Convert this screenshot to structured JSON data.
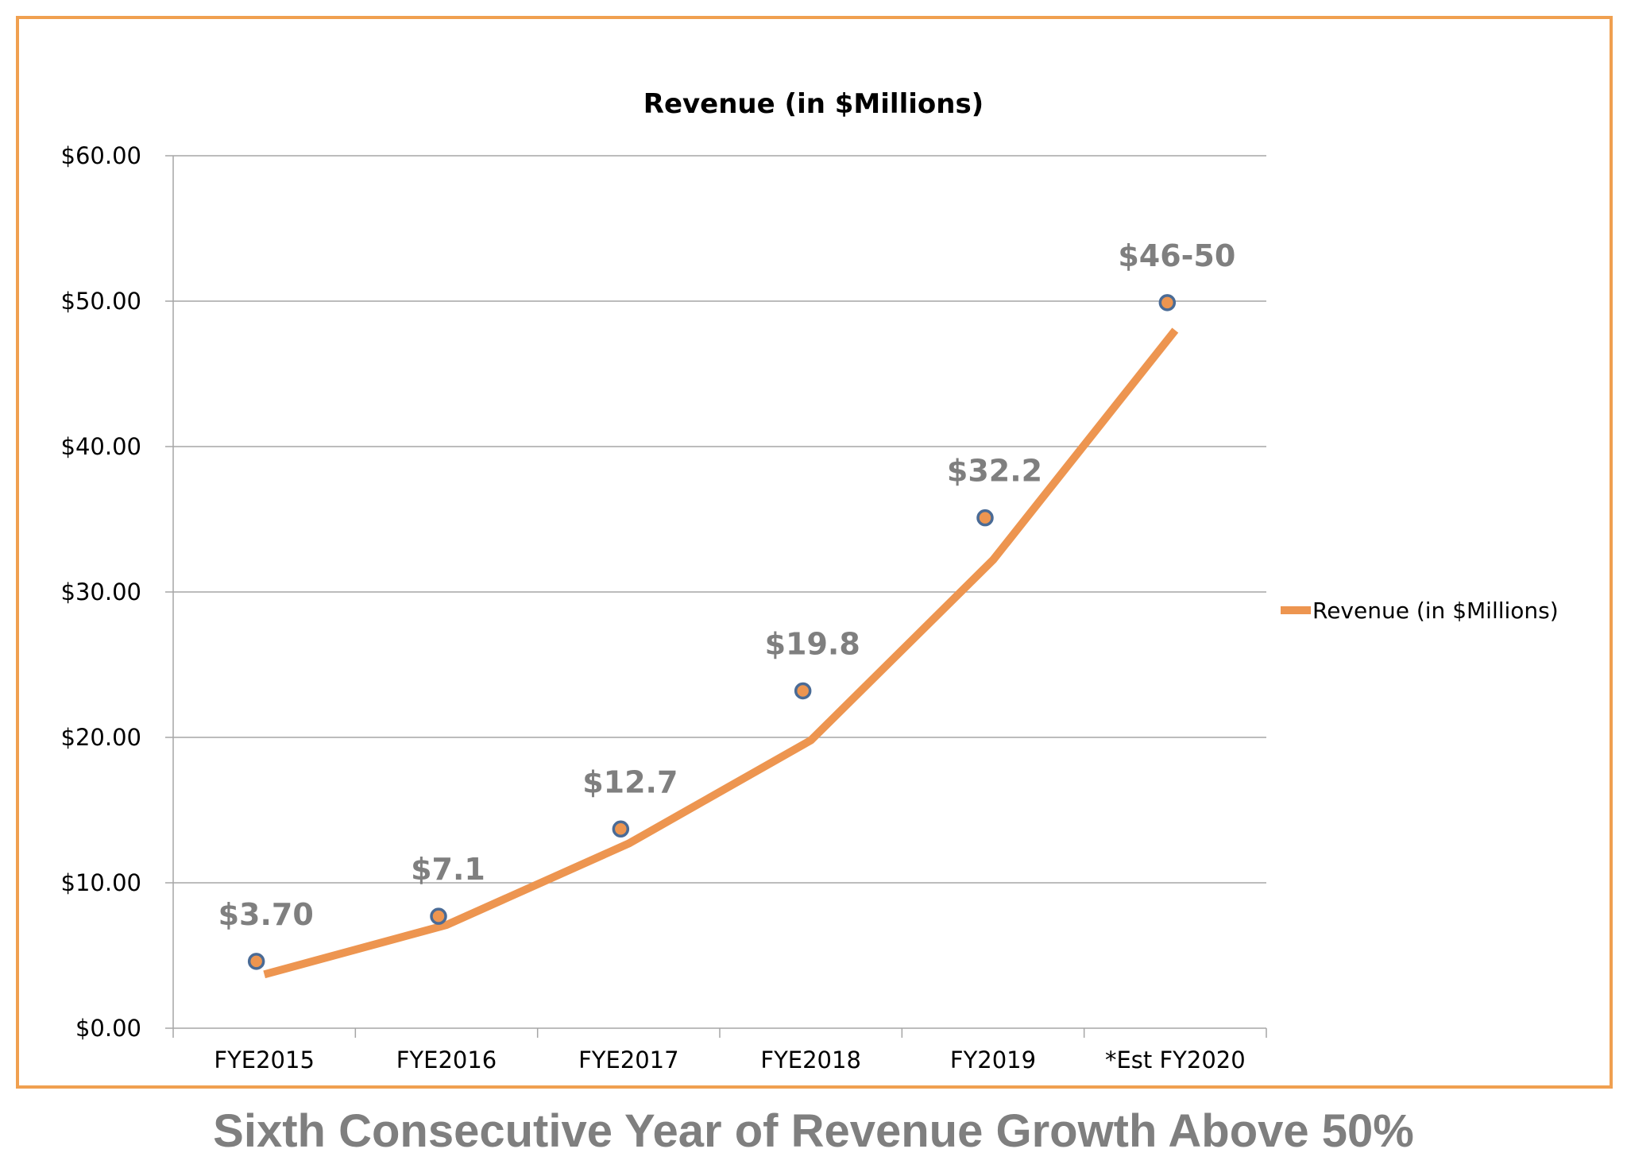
{
  "chart_data": {
    "type": "line",
    "title": "Revenue (in $Millions)",
    "xlabel": "",
    "ylabel": "",
    "categories": [
      "FYE2015",
      "FYE2016",
      "FYE2017",
      "FYE2018",
      "FY2019",
      "*Est FY2020"
    ],
    "series": [
      {
        "name": "Revenue (in $Millions)",
        "values": [
          3.7,
          7.1,
          12.7,
          19.8,
          32.2,
          48.0
        ],
        "color": "#ed9550"
      }
    ],
    "marker_values": [
      4.6,
      7.7,
      13.7,
      23.2,
      35.1,
      49.9
    ],
    "marker_color": "#ed9550",
    "marker_edge_color": "#4a6b96",
    "data_labels": [
      "$3.70",
      "$7.1",
      "$12.7",
      "$19.8",
      "$32.2",
      "$46-50"
    ],
    "y_ticks": [
      "$0.00",
      "$10.00",
      "$20.00",
      "$30.00",
      "$40.00",
      "$50.00",
      "$60.00"
    ],
    "ylim": [
      0,
      60
    ],
    "grid": true,
    "legend_position": "right"
  },
  "caption": "Sixth Consecutive Year of Revenue Growth Above 50%",
  "colors": {
    "frame_border": "#f0a050",
    "line": "#ed9550",
    "grid": "#a6a6a6",
    "label_gray": "#7f7f7f"
  }
}
